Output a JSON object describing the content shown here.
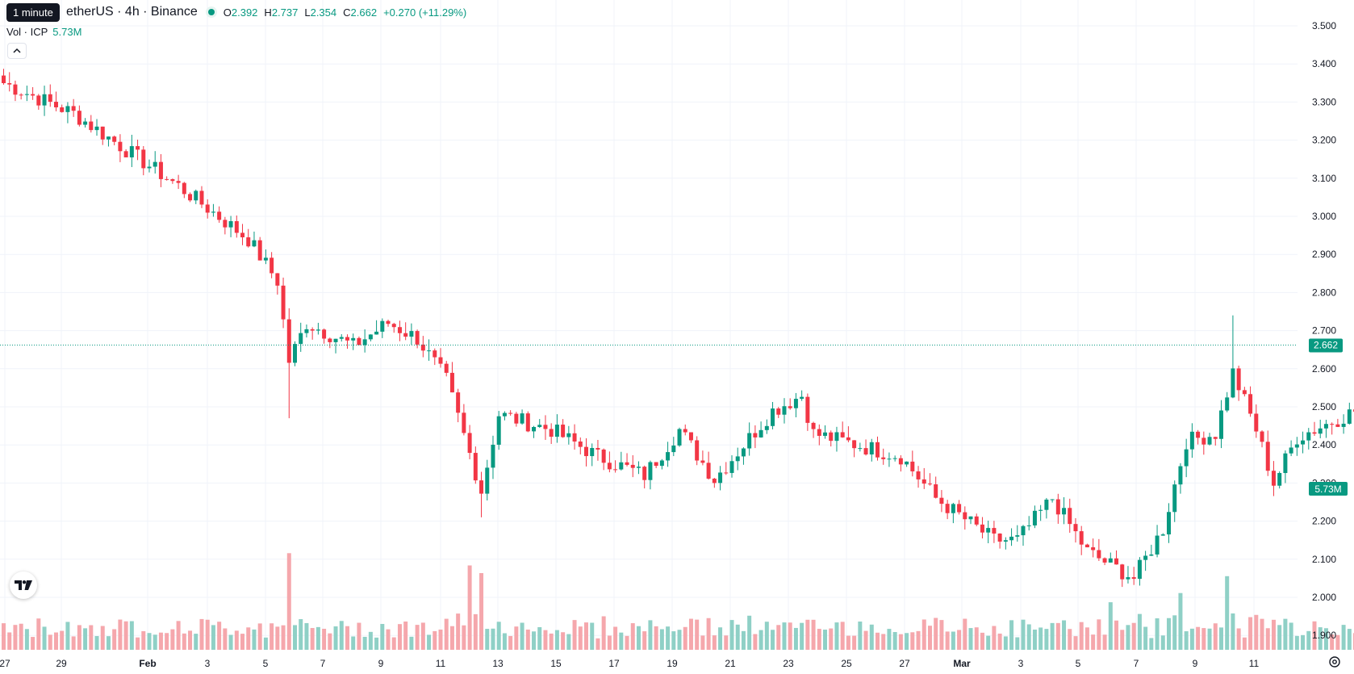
{
  "legend": {
    "symbol_partial": "etherUS · 4h · Binance",
    "o_label": "O",
    "o_val": "2.392",
    "h_label": "H",
    "h_val": "2.737",
    "l_label": "L",
    "l_val": "2.354",
    "c_label": "C",
    "c_val": "2.662",
    "change": "+0.270 (+11.29%)"
  },
  "tooltip": "1 minute",
  "volume_legend": {
    "label": "Vol · ICP",
    "value": "5.73M"
  },
  "price_badge": "2.662",
  "volume_badge": "5.73M",
  "icons": {
    "collapse": "chevron-up-icon",
    "logo": "tradingview-logo-icon",
    "settings": "gear-icon"
  },
  "colors": {
    "up": "#089981",
    "down": "#f23645",
    "vol_up": "#8fd0c6",
    "vol_down": "#f5a7ac",
    "grid": "#f0f3fa"
  },
  "chart_data": {
    "type": "candlestick",
    "interval": "4h",
    "y_ticks": [
      "1.900",
      "2.000",
      "2.100",
      "2.200",
      "2.300",
      "2.400",
      "2.500",
      "2.600",
      "2.700",
      "2.800",
      "2.900",
      "3.000",
      "3.100",
      "3.200",
      "3.300",
      "3.400",
      "3.500"
    ],
    "x_ticks": [
      "27",
      "29",
      "Feb",
      "3",
      "5",
      "7",
      "9",
      "11",
      "13",
      "15",
      "17",
      "19",
      "21",
      "23",
      "25",
      "27",
      "Mar",
      "3",
      "5",
      "7",
      "9",
      "11"
    ],
    "last_price": 2.662,
    "last_volume": "5.73M",
    "waypoints": [
      [
        0,
        3.35
      ],
      [
        12,
        3.27
      ],
      [
        30,
        3.08
      ],
      [
        42,
        2.94
      ],
      [
        47,
        2.83
      ],
      [
        49,
        2.62
      ],
      [
        52,
        2.72
      ],
      [
        60,
        2.66
      ],
      [
        66,
        2.72
      ],
      [
        71,
        2.68
      ],
      [
        76,
        2.57
      ],
      [
        82,
        2.28
      ],
      [
        85,
        2.48
      ],
      [
        94,
        2.44
      ],
      [
        102,
        2.37
      ],
      [
        110,
        2.32
      ],
      [
        116,
        2.44
      ],
      [
        122,
        2.31
      ],
      [
        132,
        2.49
      ],
      [
        137,
        2.53
      ],
      [
        139,
        2.43
      ],
      [
        154,
        2.37
      ],
      [
        160,
        2.26
      ],
      [
        170,
        2.15
      ],
      [
        174,
        2.15
      ],
      [
        180,
        2.26
      ],
      [
        186,
        2.12
      ],
      [
        194,
        2.05
      ],
      [
        199,
        2.18
      ],
      [
        203,
        2.41
      ],
      [
        208,
        2.43
      ],
      [
        211,
        2.59
      ],
      [
        215,
        2.44
      ],
      [
        218,
        2.3
      ],
      [
        222,
        2.42
      ],
      [
        235,
        2.51
      ],
      [
        245,
        2.58
      ],
      [
        250,
        2.46
      ],
      [
        266,
        2.48
      ],
      [
        270,
        2.41
      ],
      [
        272,
        2.52
      ]
    ],
    "candle_count": 273
  }
}
